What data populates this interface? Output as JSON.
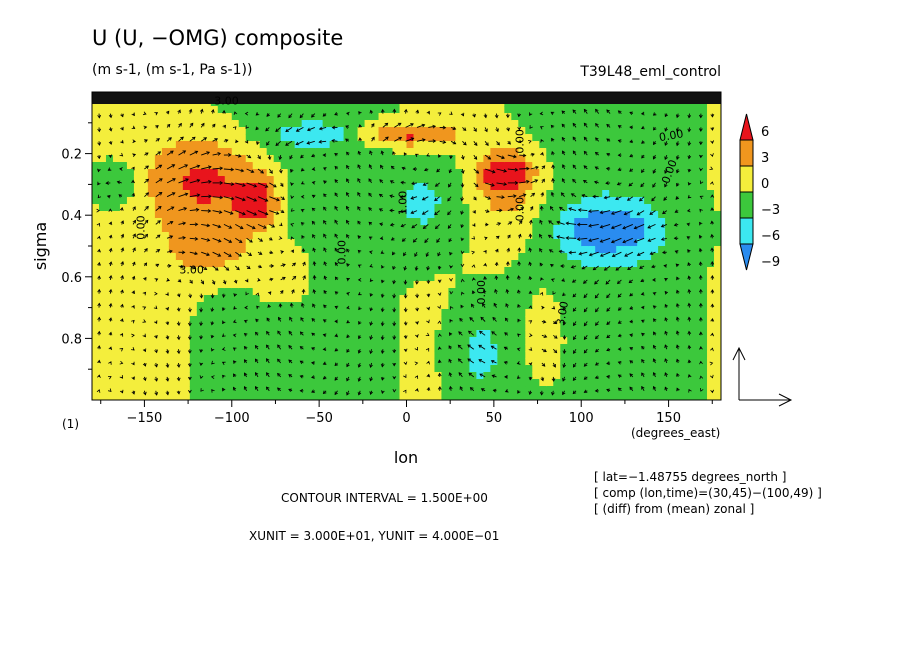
{
  "chart_data": {
    "type": "heatmap",
    "title": "U (U, −OMG) composite",
    "subtitle": "(m s-1, (m s-1, Pa s-1))",
    "run_label": "T39L48_eml_control",
    "xlabel": "lon",
    "xunit_label": "(degrees_east)",
    "ylabel": "sigma",
    "xlim": [
      -180,
      180
    ],
    "ylim": [
      0.0,
      1.0
    ],
    "y_inverted": true,
    "x_ticks": [
      -150,
      -100,
      -50,
      0,
      50,
      100,
      150
    ],
    "y_ticks": [
      0.2,
      0.4,
      0.6,
      0.8
    ],
    "x_tick_labels": [
      "−150",
      "−100",
      "−50",
      "0",
      "50",
      "100",
      "150"
    ],
    "y_tick_labels": [
      "0.2",
      "0.4",
      "0.6",
      "0.8"
    ],
    "page_marker": "(1)",
    "colorbar": {
      "labels": [
        "6",
        "3",
        "0",
        "−3",
        "−6",
        "−9"
      ],
      "levels": [
        6,
        3,
        0,
        -3,
        -6,
        -9
      ],
      "colors": [
        "#e8141c",
        "#f0961e",
        "#f4ee3c",
        "#3cc83c",
        "#3ce8f0",
        "#2a8cf0"
      ]
    },
    "contour_interval_text": "CONTOUR INTERVAL = 1.500E+00",
    "unit_vector_text": "XUNIT = 3.000E+01, YUNIT = 4.000E−01",
    "info_lines": [
      "[ lat=−1.48755 degrees_north ]",
      "[ comp (lon,time)=(30,45)−(100,49) ]",
      "[ (diff) from (mean) zonal ]"
    ],
    "contour_labels": [
      "3.00",
      "3.00",
      "0.00",
      "0.00",
      "1.00",
      "0.00",
      "0.00",
      "0.00",
      "3.00",
      "0.00",
      "0.00"
    ],
    "anomaly_features": [
      {
        "lon": -112,
        "sigma": 0.3,
        "value": 7,
        "rx": 35,
        "ry": 0.16
      },
      {
        "lon": -85,
        "sigma": 0.36,
        "value": 7,
        "rx": 12,
        "ry": 0.08
      },
      {
        "lon": -110,
        "sigma": 0.52,
        "value": 4,
        "rx": 30,
        "ry": 0.09
      },
      {
        "lon": -70,
        "sigma": 0.6,
        "value": 4,
        "rx": 17,
        "ry": 0.1
      },
      {
        "lon": 57,
        "sigma": 0.26,
        "value": 7,
        "rx": 16,
        "ry": 0.06
      },
      {
        "lon": 57,
        "sigma": 0.34,
        "value": 4,
        "rx": 23,
        "ry": 0.16
      },
      {
        "lon": 80,
        "sigma": 0.8,
        "value": 4,
        "rx": 10,
        "ry": 0.14
      },
      {
        "lon": -165,
        "sigma": 0.3,
        "value": -4,
        "rx": 10,
        "ry": 0.07
      },
      {
        "lon": -50,
        "sigma": 0.14,
        "value": -4,
        "rx": 30,
        "ry": 0.04
      },
      {
        "lon": 12,
        "sigma": 0.36,
        "value": -4,
        "rx": 27,
        "ry": 0.17
      },
      {
        "lon": 118,
        "sigma": 0.45,
        "value": -4,
        "rx": 38,
        "ry": 0.11
      },
      {
        "lon": 115,
        "sigma": 0.45,
        "value": -7,
        "rx": 18,
        "ry": 0.05
      },
      {
        "lon": 42,
        "sigma": 0.85,
        "value": -4,
        "rx": 18,
        "ry": 0.17
      },
      {
        "lon": 0,
        "sigma": 0.14,
        "value": 7,
        "rx": 30,
        "ry": 0.04
      }
    ]
  }
}
